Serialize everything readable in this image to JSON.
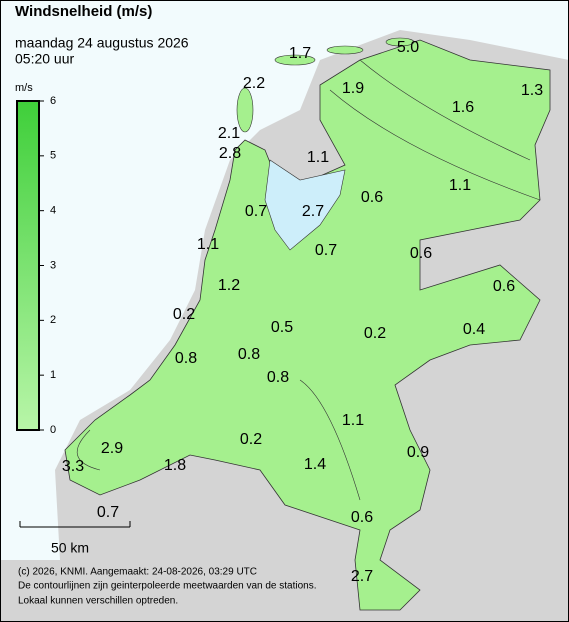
{
  "header": {
    "title": "Windsnelheid (m/s)",
    "date": "maandag 24 augustus 2026",
    "time": "05:20 uur"
  },
  "legend": {
    "unit": "m/s",
    "range": [
      0,
      6
    ],
    "ticks": [
      0,
      1,
      2,
      3,
      4,
      5,
      6
    ]
  },
  "stations": [
    1.7,
    {
      "value": 5,
      "label": "5.0"
    },
    2.2,
    1.9,
    1.3,
    1.6,
    2.1,
    2.8,
    1.1,
    0.6,
    1.1,
    0.7,
    2.7,
    1.1,
    0.7,
    0.6,
    0.6,
    1.2,
    0.2,
    0.5,
    0.2,
    0.4,
    0.8,
    0.8,
    0.8,
    1.1,
    0.2,
    2.9,
    0.9,
    3.3,
    1.8,
    1.4,
    0.6,
    0.7,
    2.7
  ],
  "scale": "50 km",
  "footer": [
    "(c) 2026, KNMI. Aangemaakt: 24-08-2026, 03:29 UTC",
    "De contourlijnen zijn geinterpoleerde meetwaarden van de stations.",
    "Lokaal kunnen verschillen optreden."
  ]
}
